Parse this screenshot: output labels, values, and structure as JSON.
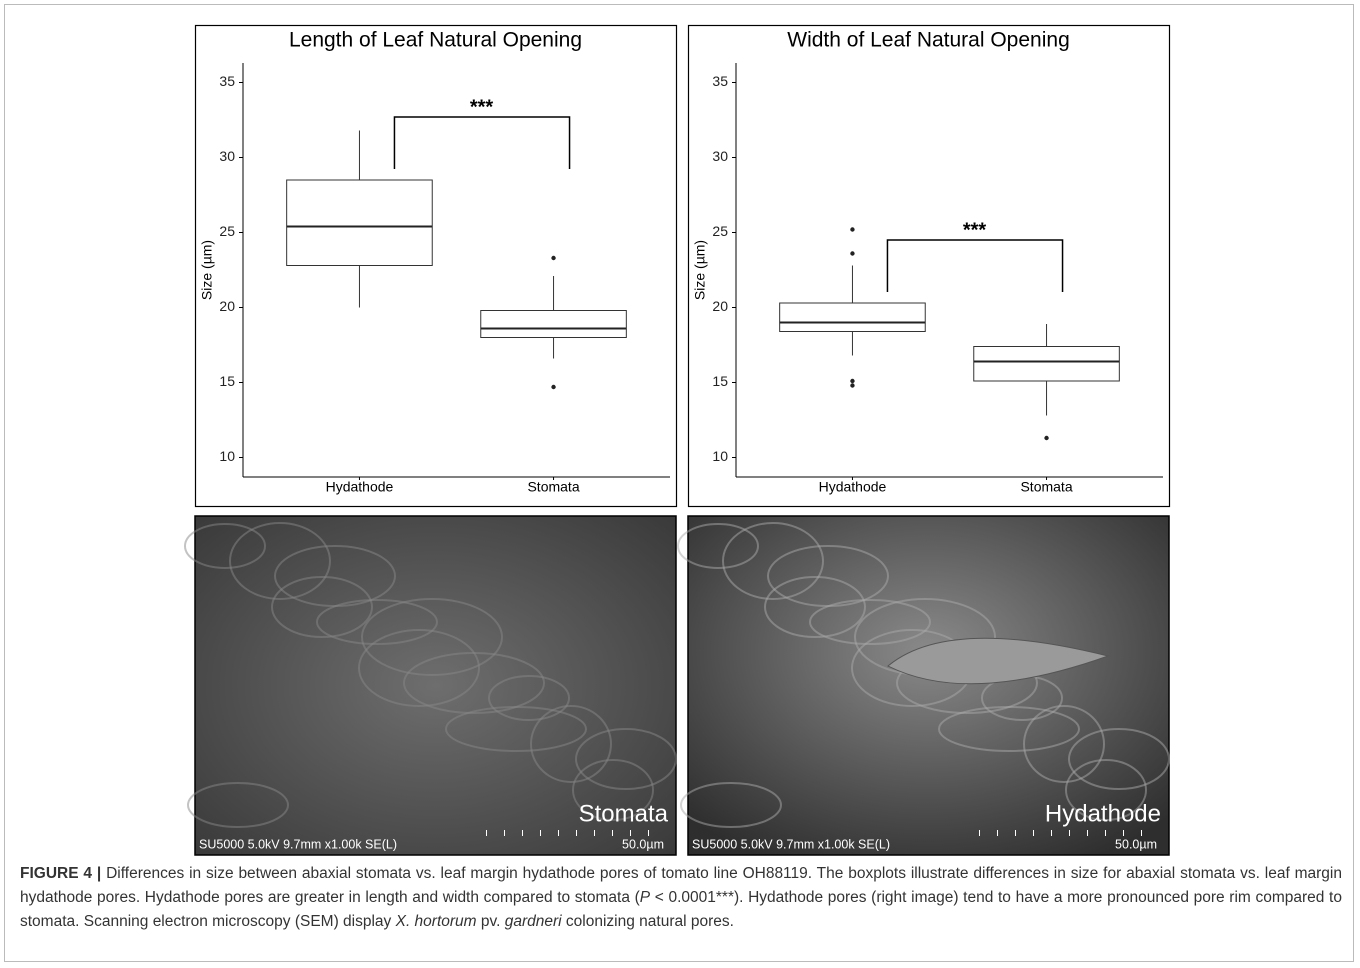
{
  "chart_data": [
    {
      "type": "box",
      "title": "Length of Leaf Natural Opening",
      "y_label": "Size (µm)",
      "categories": [
        "Hydathode",
        "Stomata"
      ],
      "boxes": [
        {
          "whisker_low": 20.0,
          "q1": 22.8,
          "median": 25.4,
          "q3": 28.5,
          "whisker_high": 31.8,
          "outliers": []
        },
        {
          "whisker_low": 16.6,
          "q1": 18.0,
          "median": 18.6,
          "q3": 19.8,
          "whisker_high": 22.1,
          "outliers": [
            23.3,
            14.7
          ]
        }
      ],
      "ylim": [
        8.7,
        36.3
      ],
      "yticks": [
        10,
        15,
        20,
        25,
        30,
        35
      ],
      "annotation": {
        "text": "***",
        "y": 32.7
      }
    },
    {
      "type": "box",
      "title": "Width of Leaf Natural Opening",
      "y_label": "Size (µm)",
      "categories": [
        "Hydathode",
        "Stomata"
      ],
      "boxes": [
        {
          "whisker_low": 16.8,
          "q1": 18.4,
          "median": 19.0,
          "q3": 20.3,
          "whisker_high": 22.8,
          "outliers": [
            25.2,
            23.6,
            15.1,
            14.8
          ]
        },
        {
          "whisker_low": 12.8,
          "q1": 15.1,
          "median": 16.4,
          "q3": 17.4,
          "whisker_high": 18.9,
          "outliers": [
            11.3
          ]
        }
      ],
      "ylim": [
        8.7,
        36.3
      ],
      "yticks": [
        10,
        15,
        20,
        25,
        30,
        35
      ],
      "annotation": {
        "text": "***",
        "y": 24.5
      }
    }
  ],
  "images": [
    {
      "label": "Stomata",
      "info": "SU5000 5.0kV 9.7mm x1.00k SE(L)",
      "scale": "50.0µm"
    },
    {
      "label": "Hydathode",
      "info": "SU5000 5.0kV 9.7mm x1.00k SE(L)",
      "scale": "50.0µm"
    }
  ],
  "caption": {
    "label": "FIGURE 4 |",
    "parts": [
      {
        "text": " Differences in size between abaxial stomata vs. leaf margin hydathode pores of tomato line OH88119. The boxplots illustrate differences in size for abaxial stomata vs. leaf margin hydathode pores. Hydathode pores are greater in length and width compared to stomata ("
      },
      {
        "text": "P",
        "italic": true
      },
      {
        "text": " < 0.0001***). Hydathode pores (right image) tend to have a more pronounced pore rim compared to stomata. Scanning electron microscopy (SEM) display "
      },
      {
        "text": "X. hortorum",
        "italic": true
      },
      {
        "text": " pv. "
      },
      {
        "text": "gardneri",
        "italic": true
      },
      {
        "text": " colonizing natural pores."
      }
    ]
  }
}
